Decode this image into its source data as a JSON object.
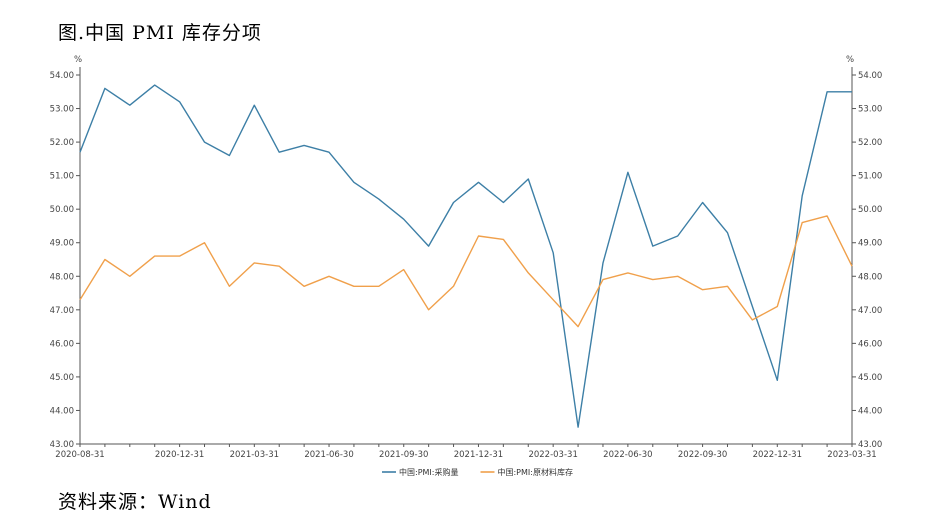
{
  "page": {
    "title": "图.中国 PMI 库存分项",
    "source": "资料来源：Wind"
  },
  "chart_data": {
    "type": "line",
    "title": "",
    "xlabel": "",
    "ylabel": "%",
    "ylabel_right": "%",
    "ylim": [
      43,
      54
    ],
    "yticks": [
      "43.00",
      "44.00",
      "45.00",
      "46.00",
      "47.00",
      "48.00",
      "49.00",
      "50.00",
      "51.00",
      "52.00",
      "53.00",
      "54.00"
    ],
    "grid": false,
    "legend_position": "bottom-center",
    "x": [
      "2020-08-31",
      "2020-09-30",
      "2020-10-31",
      "2020-11-30",
      "2020-12-31",
      "2021-01-31",
      "2021-02-28",
      "2021-03-31",
      "2021-04-30",
      "2021-05-31",
      "2021-06-30",
      "2021-07-31",
      "2021-08-31",
      "2021-09-30",
      "2021-10-31",
      "2021-11-30",
      "2021-12-31",
      "2022-01-31",
      "2022-02-28",
      "2022-03-31",
      "2022-04-30",
      "2022-05-31",
      "2022-06-30",
      "2022-07-31",
      "2022-08-31",
      "2022-09-30",
      "2022-10-31",
      "2022-11-30",
      "2022-12-31",
      "2023-01-31",
      "2023-02-28",
      "2023-03-31"
    ],
    "x_tick_labels": [
      "2020-08-31",
      "2020-12-31",
      "2021-03-31",
      "2021-06-30",
      "2021-09-30",
      "2021-12-31",
      "2022-03-31",
      "2022-06-30",
      "2022-09-30",
      "2022-12-31",
      "2023-03-31"
    ],
    "series": [
      {
        "name": "中国:PMI:采购量",
        "color": "#3d7fa6",
        "values": [
          51.7,
          53.6,
          53.1,
          53.7,
          53.2,
          52.0,
          51.6,
          53.1,
          51.7,
          51.9,
          51.7,
          50.8,
          50.3,
          49.7,
          48.9,
          50.2,
          50.8,
          50.2,
          50.9,
          48.7,
          43.5,
          48.4,
          51.1,
          48.9,
          49.2,
          50.2,
          49.3,
          47.1,
          44.9,
          50.4,
          53.5,
          53.5
        ]
      },
      {
        "name": "中国:PMI:原材料库存",
        "color": "#f0a04b",
        "values": [
          47.3,
          48.5,
          48.0,
          48.6,
          48.6,
          49.0,
          47.7,
          48.4,
          48.3,
          47.7,
          48.0,
          47.7,
          47.7,
          48.2,
          47.0,
          47.7,
          49.2,
          49.1,
          48.1,
          47.3,
          46.5,
          47.9,
          48.1,
          47.9,
          48.0,
          47.6,
          47.7,
          46.7,
          47.1,
          49.6,
          49.8,
          48.3
        ]
      }
    ]
  }
}
